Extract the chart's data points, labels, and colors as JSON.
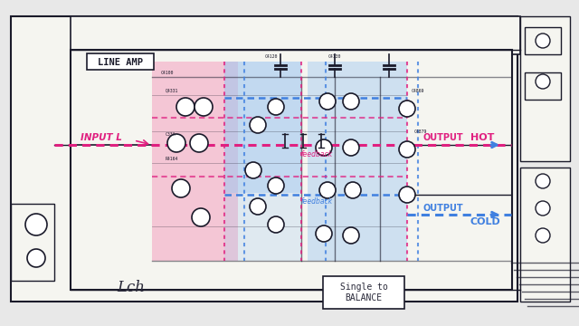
{
  "bg_color": "#e8e8e8",
  "schematic_bg": "#f5f5f0",
  "pink_fill": "#f4a0c0",
  "blue_fill": "#a0c8f0",
  "pink_line": "#e0208080",
  "hot_color": "#e0208080",
  "cold_color": "#4080e0",
  "black_line": "#1a1a2a",
  "label_pink": "#e02080",
  "label_blue": "#3070d0",
  "label_dark": "#2a2a3a",
  "grid_color": "#b0b0b0",
  "title": "LINE AMP",
  "input_label": "INPUT L",
  "hot_label": "HOT",
  "cold_label": "COLD",
  "output_label": "OUTPUT",
  "output2_label": "OUTPUT",
  "lch_label": "Lch",
  "single_to_balance": "Single to\nBALANCE",
  "feedback_label": "feedback",
  "feedback2_label": "feedback"
}
